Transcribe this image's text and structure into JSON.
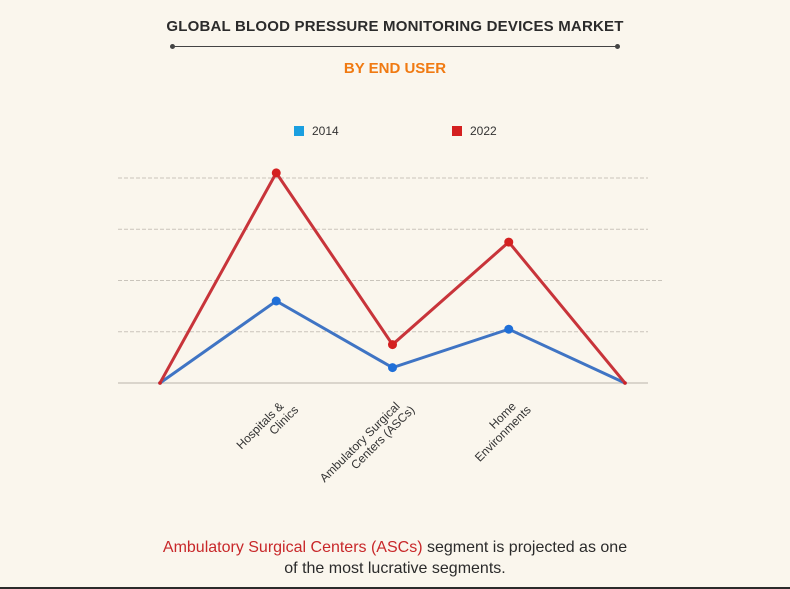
{
  "title": "GLOBAL BLOOD PRESSURE MONITORING DEVICES MARKET",
  "subtitle": "BY END USER",
  "caption": {
    "highlight": "Ambulatory Surgical Centers (ASCs)",
    "rest_line1": " segment is projected as one",
    "rest_line2": "of the most lucrative segments."
  },
  "colors": {
    "series_2014": "#3f74c4",
    "series_2022": "#c8343a",
    "legend_2014": "#1a9fe0",
    "legend_2022": "#d42020",
    "accent": "#f07a12"
  },
  "chart_data": {
    "type": "line",
    "categories": [
      "",
      "Hospitals &\nClinics",
      "Ambulatory Surgical\nCenters (ASCs)",
      "Home\nEnvironments",
      ""
    ],
    "series": [
      {
        "name": "2014",
        "values": [
          0,
          1.6,
          0.3,
          1.05,
          0
        ]
      },
      {
        "name": "2022",
        "values": [
          0,
          4.1,
          0.75,
          2.75,
          0
        ]
      }
    ],
    "ylim": [
      0,
      4
    ],
    "grid": true,
    "legend_position": "top-center",
    "xlabel": "",
    "ylabel": ""
  }
}
